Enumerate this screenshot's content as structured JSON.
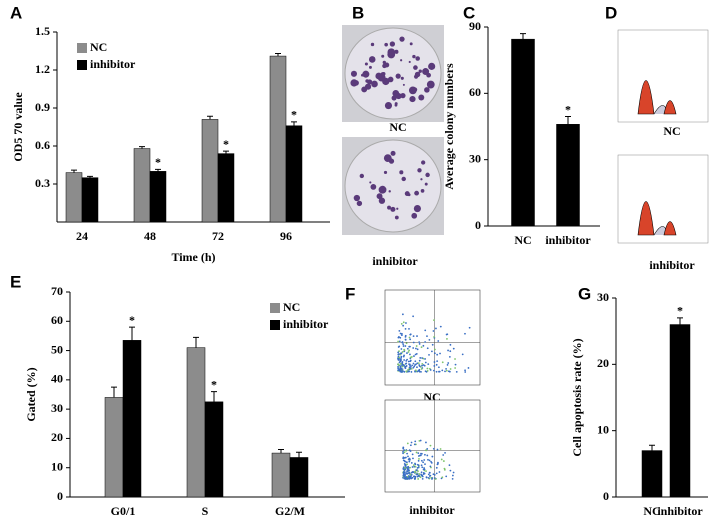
{
  "chart_data": [
    {
      "type": "bar",
      "panel": "A",
      "xlabel": "Time (h)",
      "ylabel": "OD5 70 value",
      "categories": [
        "24",
        "48",
        "72",
        "96"
      ],
      "series": [
        {
          "name": "NC",
          "color": "#8c8c8c",
          "values": [
            0.39,
            0.58,
            0.81,
            1.31
          ],
          "errors": [
            0.02,
            0.015,
            0.025,
            0.02
          ],
          "annotations": [
            null,
            null,
            null,
            null
          ]
        },
        {
          "name": "inhibitor",
          "color": "#000000",
          "values": [
            0.35,
            0.4,
            0.54,
            0.76
          ],
          "errors": [
            0.01,
            0.015,
            0.02,
            0.03
          ],
          "annotations": [
            null,
            "*",
            "*",
            "*"
          ]
        }
      ],
      "ylim": [
        0,
        1.5
      ],
      "yticks": [
        0.3,
        0.6,
        0.9,
        1.2,
        1.5
      ],
      "legend": "upper left"
    },
    {
      "type": "bar",
      "panel": "C",
      "ylabel": "Average colony numbers",
      "categories": [
        "NC",
        "inhibitor"
      ],
      "color": "#000000",
      "values": [
        84.5,
        46
      ],
      "errors": [
        2.5,
        3.5
      ],
      "annotations": [
        null,
        "*"
      ],
      "ylim": [
        0,
        90
      ],
      "yticks": [
        0,
        30,
        60,
        90
      ]
    },
    {
      "type": "bar",
      "panel": "E",
      "ylabel": "Gated (%)",
      "categories": [
        "G0/1",
        "S",
        "G2/M"
      ],
      "series": [
        {
          "name": "NC",
          "color": "#8c8c8c",
          "values": [
            34,
            51,
            15
          ],
          "errors": [
            3.5,
            3.5,
            1.2
          ],
          "annotations": [
            null,
            null,
            null
          ]
        },
        {
          "name": "inhibitor",
          "color": "#000000",
          "values": [
            53.5,
            32.5,
            13.5
          ],
          "errors": [
            4.5,
            3.5,
            1.8
          ],
          "annotations": [
            "*",
            "*",
            null
          ]
        }
      ],
      "ylim": [
        0,
        70
      ],
      "yticks": [
        0,
        10,
        20,
        30,
        40,
        50,
        60,
        70
      ],
      "legend": "upper right"
    },
    {
      "type": "bar",
      "panel": "G",
      "ylabel": "Cell apoptosis rate (%)",
      "categories": [
        "NC",
        "inhibitor"
      ],
      "color": "#000000",
      "values": [
        7,
        26
      ],
      "errors": [
        0.8,
        1
      ],
      "annotations": [
        null,
        "*"
      ],
      "ylim": [
        0,
        30
      ],
      "yticks": [
        0,
        10,
        20,
        30
      ]
    }
  ],
  "images": [
    {
      "panel": "B",
      "labels": [
        "NC",
        "inhibitor"
      ]
    },
    {
      "panel": "D",
      "labels": [
        "NC",
        "inhibitor"
      ]
    },
    {
      "panel": "F",
      "labels": [
        "NC",
        "inhibitor"
      ]
    }
  ]
}
